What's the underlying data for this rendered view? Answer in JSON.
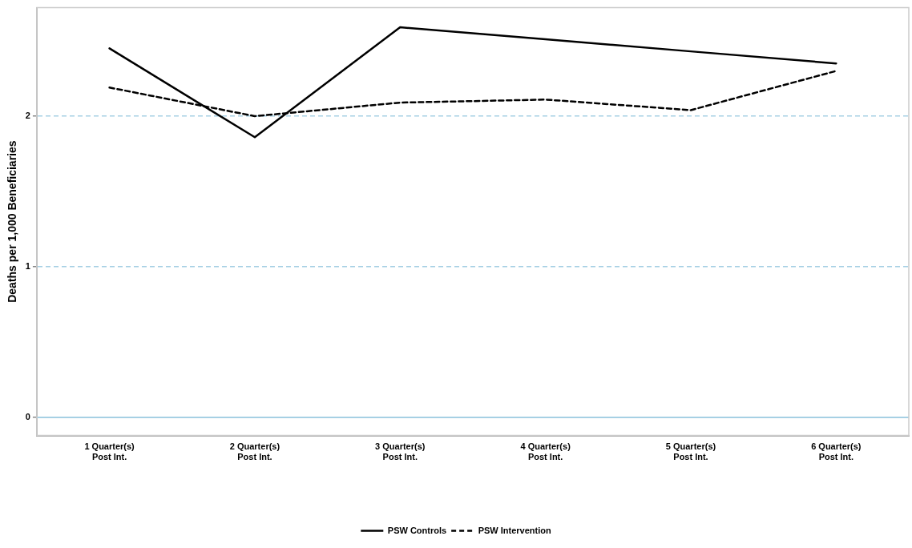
{
  "chart_data": {
    "type": "line",
    "ylabel": "Deaths per 1,000 Beneficiaries",
    "categories": [
      "1 Quarter(s)\nPost Int.",
      "2 Quarter(s)\nPost Int.",
      "3 Quarter(s)\nPost Int.",
      "4 Quarter(s)\nPost Int.",
      "5 Quarter(s)\nPost Int.",
      "6 Quarter(s)\nPost Int."
    ],
    "series": [
      {
        "name": "PSW Controls",
        "color": "#000000",
        "line_style": "solid",
        "values": [
          2.45,
          1.86,
          2.59,
          2.51,
          2.43,
          2.35
        ]
      },
      {
        "name": "PSW Intervention",
        "color": "#000000",
        "line_style": "dashed",
        "values": [
          2.19,
          2.0,
          2.09,
          2.11,
          2.04,
          2.3
        ]
      }
    ],
    "ylim": [
      -0.12,
      2.72
    ],
    "yticks": [
      0,
      1,
      2
    ],
    "grid": "y",
    "legend": "bottom",
    "marker": "none",
    "ref_lines": [
      {
        "axis": "y",
        "value": 0,
        "color": "#a6d0e4",
        "line_style": "solid"
      }
    ]
  }
}
